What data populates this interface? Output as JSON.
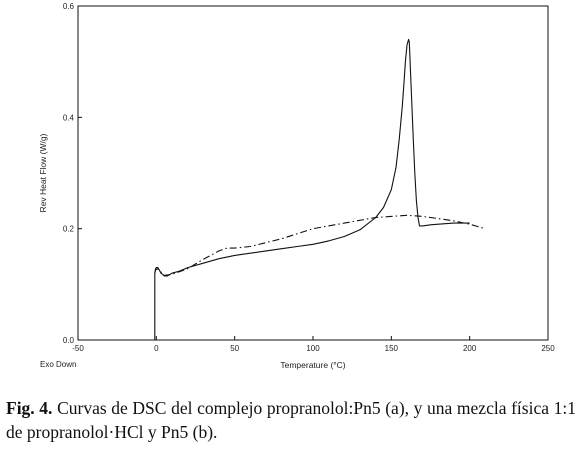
{
  "chart_data": {
    "type": "line",
    "title": "",
    "xlabel": "Temperature (°C)",
    "ylabel": "Rev Heat Flow (W/g)",
    "xlim": [
      -50,
      250
    ],
    "ylim": [
      0.0,
      0.6
    ],
    "x_ticks": [
      -50,
      0,
      50,
      100,
      150,
      200,
      250
    ],
    "x_tick_labels": [
      "-50",
      "0",
      "50",
      "100",
      "150",
      "200",
      "250"
    ],
    "y_ticks": [
      0.0,
      0.2,
      0.4,
      0.6
    ],
    "y_tick_labels": [
      "0.0",
      "0.2",
      "0.4",
      "0.6"
    ],
    "grid": false,
    "annotations": [
      {
        "text": "Exo Down"
      }
    ],
    "series": [
      {
        "style": "solid",
        "x": [
          -1,
          -1,
          -0.5,
          0,
          1,
          2,
          3,
          4,
          5,
          7,
          10,
          15,
          20,
          30,
          40,
          50,
          60,
          70,
          80,
          90,
          100,
          110,
          120,
          130,
          140,
          145,
          150,
          153,
          155,
          157,
          158,
          159,
          160,
          161,
          161.5,
          162,
          163,
          164,
          165,
          166,
          167,
          168,
          170,
          175,
          180,
          190,
          200
        ],
        "y": [
          0.0,
          0.12,
          0.128,
          0.13,
          0.13,
          0.125,
          0.12,
          0.118,
          0.115,
          0.115,
          0.12,
          0.124,
          0.13,
          0.138,
          0.146,
          0.152,
          0.156,
          0.16,
          0.164,
          0.168,
          0.172,
          0.178,
          0.186,
          0.198,
          0.22,
          0.238,
          0.27,
          0.31,
          0.36,
          0.42,
          0.46,
          0.5,
          0.53,
          0.54,
          0.535,
          0.5,
          0.43,
          0.36,
          0.3,
          0.25,
          0.22,
          0.205,
          0.205,
          0.207,
          0.208,
          0.21,
          0.21
        ]
      },
      {
        "style": "dashed",
        "x": [
          -1,
          -0.5,
          1,
          3,
          5,
          10,
          20,
          30,
          40,
          45,
          50,
          60,
          70,
          80,
          100,
          120,
          140,
          160,
          170,
          180,
          190,
          200,
          210
        ],
        "y": [
          0.12,
          0.126,
          0.128,
          0.122,
          0.116,
          0.118,
          0.128,
          0.145,
          0.16,
          0.165,
          0.165,
          0.168,
          0.175,
          0.182,
          0.2,
          0.21,
          0.22,
          0.224,
          0.222,
          0.218,
          0.214,
          0.208,
          0.2
        ]
      }
    ]
  },
  "caption": {
    "label": "Fig. 4.",
    "text": " Curvas de DSC del complejo propranolol:Pn5 (a), y una mezcla física 1:1 de propranolol·HCl y Pn5 (b)."
  }
}
